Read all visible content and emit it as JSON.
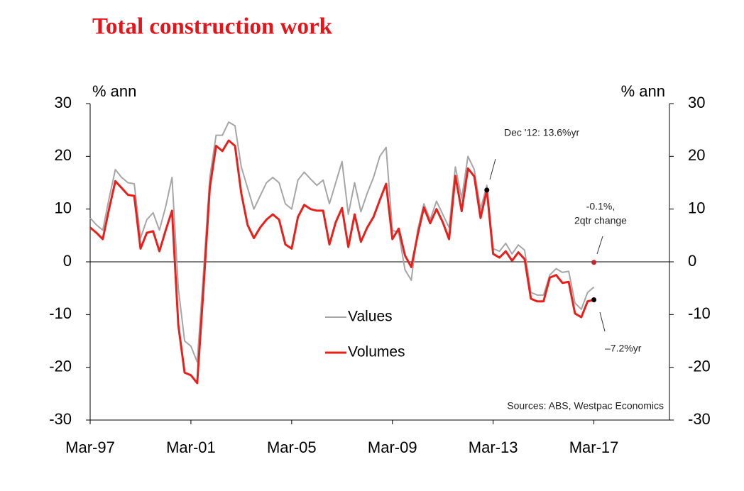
{
  "chart_data": {
    "type": "line",
    "title": "Total construction work",
    "y_label": "% ann",
    "y2_label": "% ann",
    "source": "Sources: ABS, Westpac Economics",
    "categories": [
      "Mar-97",
      null,
      null,
      null,
      null,
      null,
      null,
      null,
      null,
      null,
      null,
      null,
      null,
      null,
      null,
      null,
      "Mar-01",
      null,
      null,
      null,
      null,
      null,
      null,
      null,
      null,
      null,
      null,
      null,
      null,
      null,
      null,
      null,
      "Mar-05",
      null,
      null,
      null,
      null,
      null,
      null,
      null,
      null,
      null,
      null,
      null,
      null,
      null,
      null,
      null,
      "Mar-09",
      null,
      null,
      null,
      null,
      null,
      null,
      null,
      null,
      null,
      null,
      null,
      null,
      null,
      null,
      null,
      "Mar-13",
      null,
      null,
      null,
      null,
      null,
      null,
      null,
      null,
      null,
      null,
      null,
      null,
      null,
      null,
      null,
      "Mar-17",
      null,
      null,
      null,
      null,
      null,
      null,
      null,
      null,
      null,
      null,
      null,
      null
    ],
    "series": [
      {
        "name": "Values",
        "color": "#a6a6a6",
        "values": [
          8.3,
          7,
          6,
          12,
          17.5,
          16,
          15,
          14.8,
          4.5,
          8,
          9.3,
          6,
          10.5,
          16,
          -5,
          -15,
          -16,
          -19,
          -2,
          16,
          24,
          24,
          26.5,
          25.8,
          18,
          14,
          10,
          12.5,
          15,
          16,
          15,
          11,
          10,
          15.5,
          17,
          15.7,
          14.5,
          15.5,
          11,
          15,
          19,
          9,
          15,
          9.5,
          13,
          16,
          20,
          21.7,
          6,
          5.5,
          -1.5,
          -3.5,
          6,
          11,
          8,
          11.5,
          9,
          6.5,
          18,
          12,
          20,
          17.5,
          10,
          14.5,
          2.5,
          2,
          3.5,
          1.5,
          3.2,
          2.2,
          -5.8,
          -6.3,
          -6.3,
          -2.5,
          -1.3,
          -2,
          -1.8,
          -7.8,
          -9,
          -5.8,
          -4.8,
          null,
          null,
          null,
          null,
          null,
          null,
          null,
          null,
          null,
          null,
          null,
          null
        ]
      },
      {
        "name": "Volumes",
        "color": "#e8201c",
        "values": [
          6.5,
          5.5,
          4.3,
          10,
          15.3,
          14,
          12.7,
          12.5,
          2.5,
          5.5,
          5.8,
          2,
          6,
          9.7,
          -12,
          -21,
          -21.5,
          -23,
          -5,
          14,
          22,
          21,
          23,
          22,
          13,
          7,
          4.5,
          6.5,
          8,
          9,
          8,
          3.3,
          2.5,
          8.5,
          10.8,
          10,
          9.7,
          9.7,
          3.3,
          7.5,
          10.2,
          2.8,
          9,
          3.8,
          6.5,
          8.5,
          11.7,
          14.8,
          4.3,
          6.3,
          1.2,
          -1,
          5,
          10.3,
          7.3,
          10,
          7.5,
          4.3,
          16.3,
          9.6,
          17.7,
          16.2,
          8.3,
          13.6,
          1.5,
          0.8,
          2,
          0.2,
          1.8,
          0.5,
          -7,
          -7.5,
          -7.5,
          -3,
          -2.5,
          -4,
          -3.8,
          -9.8,
          -10.5,
          -7.5,
          -7.2,
          null,
          null,
          null,
          null,
          null,
          null,
          null,
          null,
          null,
          null,
          null,
          null
        ]
      }
    ],
    "annotations": [
      {
        "text": "Dec '12: 13.6%yr"
      },
      {
        "text": [
          "-0.1%,",
          "2qtr change"
        ],
        "value": -0.1,
        "color": "#c0282d"
      },
      {
        "text": "–7.2%yr"
      }
    ],
    "ylim": [
      -30,
      30
    ],
    "yticks": [
      -30,
      -20,
      -10,
      0,
      10,
      20,
      30
    ],
    "y2lim": [
      -30,
      30
    ],
    "y2ticks": [
      -30,
      -20,
      -10,
      0,
      10,
      20,
      30
    ],
    "grid": false,
    "legend": "inside"
  }
}
